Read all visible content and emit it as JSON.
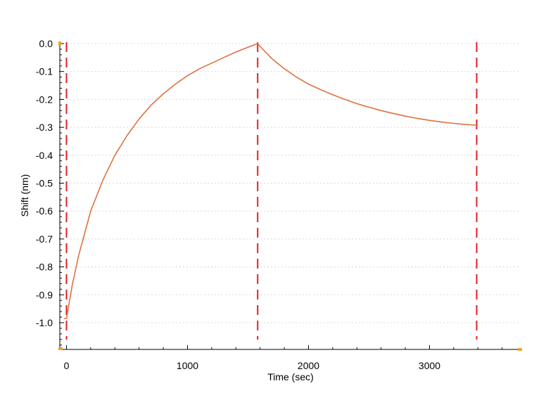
{
  "chart_data": {
    "type": "line",
    "title": "",
    "xlabel": "Time (sec)",
    "ylabel": "Shift (nm)",
    "xlim": [
      -50,
      3700
    ],
    "ylim": [
      -1.1,
      0.0
    ],
    "xticks": [
      0,
      1000,
      2000,
      3000
    ],
    "xtick_labels": [
      "0",
      "1000",
      "2000",
      "3000"
    ],
    "yticks": [
      0.0,
      -0.1,
      -0.2,
      -0.3,
      -0.4,
      -0.5,
      -0.6,
      -0.7,
      -0.8,
      -0.9,
      -1.0
    ],
    "ytick_labels": [
      "0.0",
      "-0.1",
      "-0.2",
      "-0.3",
      "-0.4",
      "-0.5",
      "-0.6",
      "-0.7",
      "-0.8",
      "-0.9",
      "-1.0"
    ],
    "grid": "horizontal dotted",
    "legend": "none",
    "series": [
      {
        "x": [
          -20,
          0,
          50,
          100,
          150,
          200,
          300,
          400,
          500,
          600,
          700,
          800,
          900,
          1000,
          1100,
          1200,
          1300,
          1400,
          1500,
          1580,
          1600,
          1700,
          1800,
          1900,
          2000,
          2100,
          2200,
          2300,
          2400,
          2500,
          2600,
          2700,
          2800,
          2900,
          3000,
          3100,
          3200,
          3300,
          3400
        ],
        "y": [
          -0.985,
          -0.985,
          -0.86,
          -0.76,
          -0.68,
          -0.6,
          -0.49,
          -0.4,
          -0.33,
          -0.27,
          -0.22,
          -0.18,
          -0.145,
          -0.115,
          -0.09,
          -0.07,
          -0.05,
          -0.03,
          -0.013,
          0.0,
          -0.01,
          -0.055,
          -0.09,
          -0.12,
          -0.145,
          -0.165,
          -0.183,
          -0.2,
          -0.215,
          -0.228,
          -0.24,
          -0.25,
          -0.26,
          -0.268,
          -0.275,
          -0.281,
          -0.286,
          -0.29,
          -0.293
        ]
      }
    ],
    "markers": [
      0,
      1580,
      3390
    ],
    "colors": {
      "series": "#e07040",
      "marker_lines": "#dd2222",
      "grid": "#d8d8d8",
      "axis": "#000000",
      "corner_marks": "#f0a030"
    }
  }
}
